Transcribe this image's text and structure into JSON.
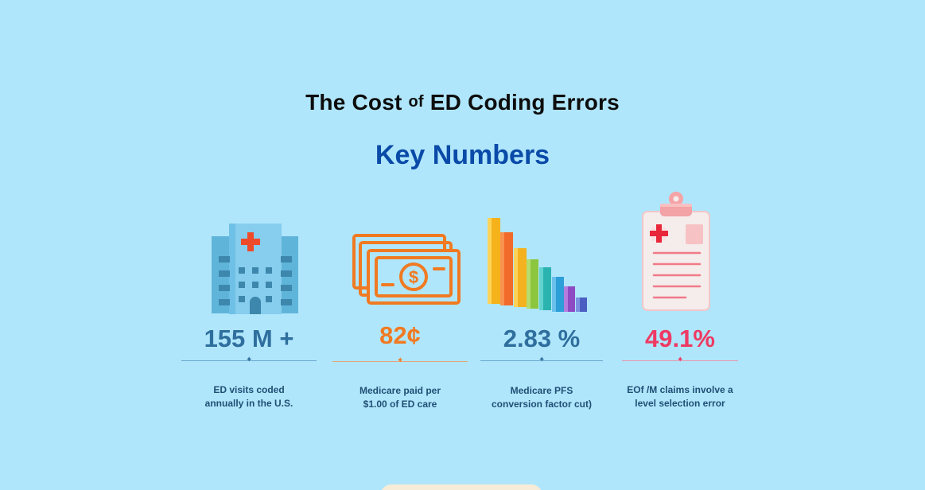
{
  "header": {
    "title_main": "The Cost",
    "title_small": "of",
    "title_rest": "ED Coding Errors",
    "subtitle": "Key Numbers"
  },
  "stats": [
    {
      "icon": "hospital-icon",
      "value": "155 M +",
      "caption_line1": "ED visits coded",
      "caption_line2": "annually in the U.S.",
      "color": "#2f6f9e"
    },
    {
      "icon": "money-icon",
      "value": "82¢",
      "caption_line1": "Medicare paid per",
      "caption_line2": "$1.00 of ED care",
      "color": "#f07a22"
    },
    {
      "icon": "bar-chart-icon",
      "value": "2.83 %",
      "caption_line1": "Medicare PFS",
      "caption_line2": "conversion factor cut)",
      "color": "#2f6f9e"
    },
    {
      "icon": "clipboard-icon",
      "value": "49.1%",
      "caption_line1": "EOf /M claims involve a",
      "caption_line2": "level selection error",
      "color": "#ee3a63"
    }
  ],
  "colors": {
    "background": "#b0e6fb",
    "title": "#0d0d0d",
    "subtitle": "#0a4aa8"
  }
}
